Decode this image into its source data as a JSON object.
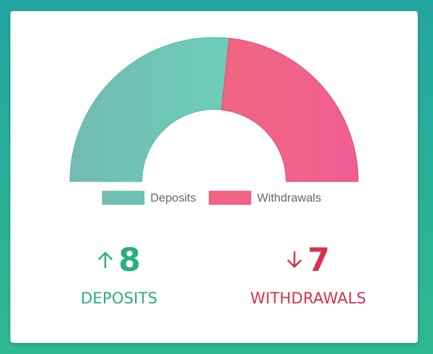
{
  "chart_data": {
    "type": "pie",
    "variant": "half-doughnut",
    "categories": [
      "Deposits",
      "Withdrawals"
    ],
    "values": [
      8,
      7
    ],
    "colors": [
      "#6cc4b6",
      "#ef6384"
    ],
    "legend": "bottom"
  },
  "stats": {
    "deposits": {
      "value": "8",
      "label": "DEPOSITS",
      "direction": "up",
      "color": "#2aae7d"
    },
    "withdrawals": {
      "value": "7",
      "label": "WITHDRAWALS",
      "direction": "down",
      "color": "#d6314f"
    }
  }
}
